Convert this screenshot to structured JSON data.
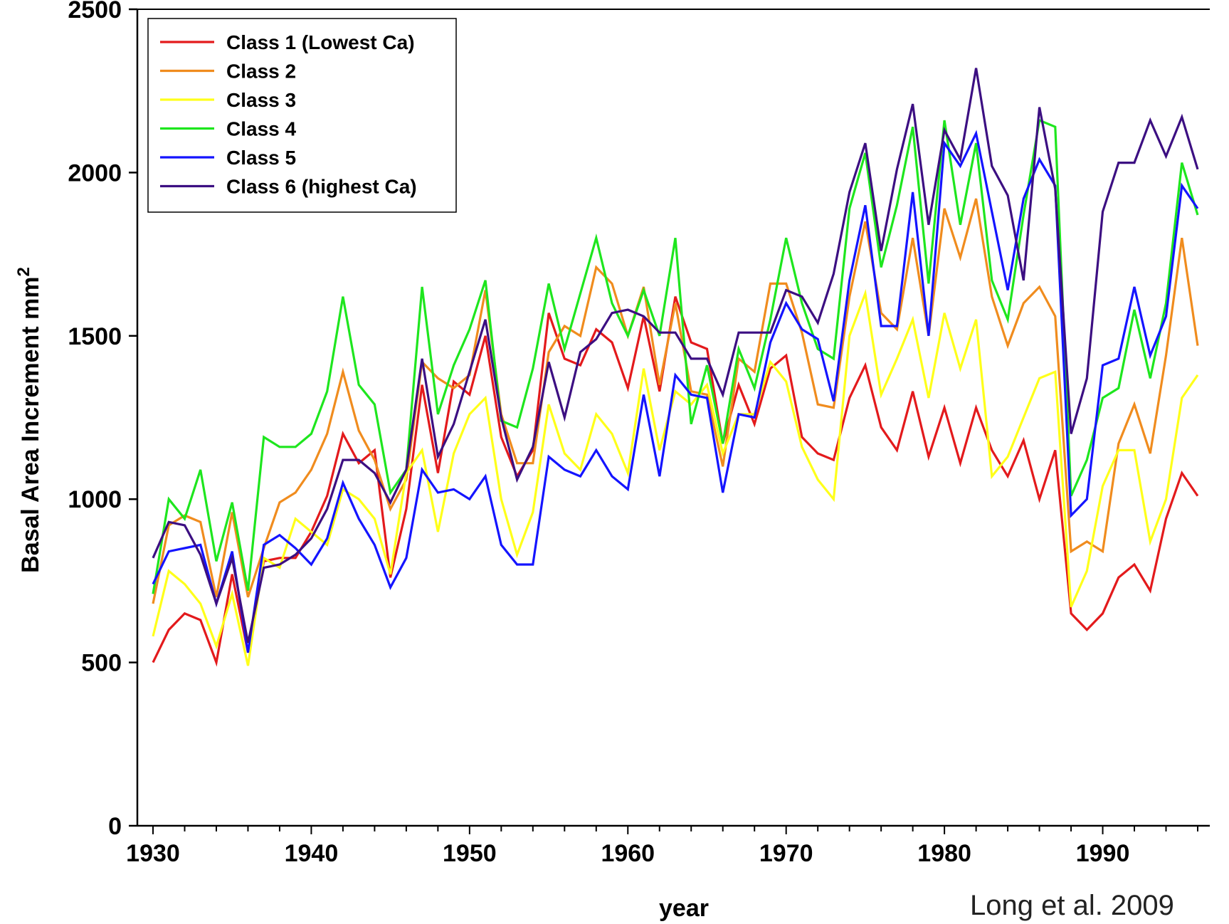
{
  "chart_data": {
    "type": "line",
    "title": "",
    "xlabel": "year",
    "ylabel": "Basal Area Increment mm",
    "ylabel_superscript": "2",
    "xlim": [
      1929,
      1997
    ],
    "ylim": [
      0,
      2500
    ],
    "xticks": [
      1930,
      1940,
      1950,
      1960,
      1970,
      1980,
      1990
    ],
    "yticks": [
      0,
      500,
      1000,
      1500,
      2000,
      2500
    ],
    "legend_position": "top-left",
    "grid": false,
    "x": [
      1930,
      1931,
      1932,
      1933,
      1934,
      1935,
      1936,
      1937,
      1938,
      1939,
      1940,
      1941,
      1942,
      1943,
      1944,
      1945,
      1946,
      1947,
      1948,
      1949,
      1950,
      1951,
      1952,
      1953,
      1954,
      1955,
      1956,
      1957,
      1958,
      1959,
      1960,
      1961,
      1962,
      1963,
      1964,
      1965,
      1966,
      1967,
      1968,
      1969,
      1970,
      1971,
      1972,
      1973,
      1974,
      1975,
      1976,
      1977,
      1978,
      1979,
      1980,
      1981,
      1982,
      1983,
      1984,
      1985,
      1986,
      1987,
      1988,
      1989,
      1990,
      1991,
      1992,
      1993,
      1994,
      1995,
      1996
    ],
    "series": [
      {
        "name": "Class 1 (Lowest Ca)",
        "color": "#e31a1c",
        "values": [
          500,
          600,
          650,
          630,
          500,
          770,
          530,
          810,
          820,
          820,
          900,
          1010,
          1200,
          1110,
          1150,
          760,
          970,
          1350,
          1080,
          1360,
          1320,
          1500,
          1190,
          1070,
          1150,
          1570,
          1430,
          1410,
          1520,
          1480,
          1340,
          1560,
          1330,
          1620,
          1480,
          1460,
          1170,
          1350,
          1230,
          1400,
          1440,
          1190,
          1140,
          1120,
          1310,
          1410,
          1220,
          1150,
          1330,
          1130,
          1280,
          1110,
          1280,
          1150,
          1070,
          1180,
          1000,
          1150,
          650,
          600,
          650,
          760,
          800,
          720,
          940,
          1080,
          1010
        ]
      },
      {
        "name": "Class 2",
        "color": "#f08c1e",
        "values": [
          680,
          920,
          950,
          930,
          700,
          960,
          700,
          850,
          990,
          1020,
          1090,
          1200,
          1390,
          1210,
          1120,
          970,
          1060,
          1420,
          1370,
          1340,
          1380,
          1640,
          1260,
          1110,
          1110,
          1450,
          1530,
          1500,
          1710,
          1660,
          1500,
          1650,
          1350,
          1600,
          1330,
          1320,
          1100,
          1430,
          1390,
          1660,
          1660,
          1510,
          1290,
          1280,
          1620,
          1850,
          1570,
          1520,
          1800,
          1500,
          1890,
          1740,
          1920,
          1620,
          1470,
          1600,
          1650,
          1560,
          840,
          870,
          840,
          1170,
          1290,
          1140,
          1440,
          1800,
          1470
        ]
      },
      {
        "name": "Class 3",
        "color": "#ffff1a",
        "values": [
          580,
          780,
          740,
          680,
          550,
          710,
          490,
          820,
          790,
          940,
          900,
          860,
          1030,
          1000,
          940,
          770,
          1080,
          1150,
          900,
          1140,
          1260,
          1310,
          1000,
          830,
          960,
          1290,
          1140,
          1090,
          1260,
          1200,
          1080,
          1400,
          1150,
          1330,
          1290,
          1350,
          1140,
          1260,
          1260,
          1420,
          1360,
          1160,
          1060,
          1000,
          1500,
          1630,
          1320,
          1430,
          1550,
          1310,
          1570,
          1400,
          1550,
          1070,
          1130,
          1250,
          1370,
          1390,
          670,
          780,
          1040,
          1150,
          1150,
          870,
          1000,
          1310,
          1380
        ]
      },
      {
        "name": "Class 4",
        "color": "#1ee61e",
        "values": [
          710,
          1000,
          940,
          1090,
          810,
          990,
          720,
          1190,
          1160,
          1160,
          1200,
          1330,
          1620,
          1350,
          1290,
          1020,
          1090,
          1650,
          1260,
          1410,
          1520,
          1670,
          1240,
          1220,
          1400,
          1660,
          1460,
          1630,
          1800,
          1600,
          1500,
          1640,
          1500,
          1800,
          1230,
          1410,
          1170,
          1460,
          1340,
          1550,
          1800,
          1600,
          1460,
          1430,
          1890,
          2060,
          1710,
          1900,
          2140,
          1660,
          2160,
          1840,
          2090,
          1670,
          1550,
          1870,
          2160,
          2140,
          1010,
          1120,
          1310,
          1340,
          1580,
          1370,
          1600,
          2030,
          1870
        ]
      },
      {
        "name": "Class 5",
        "color": "#1414ff",
        "values": [
          740,
          840,
          850,
          860,
          680,
          840,
          530,
          860,
          890,
          850,
          800,
          880,
          1050,
          940,
          860,
          730,
          820,
          1090,
          1020,
          1030,
          1000,
          1070,
          860,
          800,
          800,
          1130,
          1090,
          1070,
          1150,
          1070,
          1030,
          1320,
          1070,
          1380,
          1320,
          1310,
          1020,
          1260,
          1250,
          1480,
          1600,
          1520,
          1490,
          1300,
          1670,
          1900,
          1530,
          1530,
          1940,
          1500,
          2090,
          2020,
          2120,
          1880,
          1640,
          1920,
          2040,
          1960,
          950,
          1000,
          1410,
          1430,
          1650,
          1440,
          1560,
          1960,
          1890
        ]
      },
      {
        "name": "Class 6 (highest Ca)",
        "color": "#3c0f82",
        "values": [
          820,
          930,
          920,
          830,
          680,
          820,
          560,
          790,
          800,
          830,
          880,
          970,
          1120,
          1120,
          1080,
          990,
          1090,
          1430,
          1130,
          1230,
          1390,
          1550,
          1250,
          1060,
          1160,
          1420,
          1250,
          1450,
          1490,
          1570,
          1580,
          1560,
          1510,
          1510,
          1430,
          1430,
          1320,
          1510,
          1510,
          1510,
          1640,
          1620,
          1540,
          1690,
          1940,
          2090,
          1760,
          2010,
          2210,
          1840,
          2130,
          2040,
          2320,
          2020,
          1930,
          1670,
          2200,
          1950,
          1200,
          1370,
          1880,
          2030,
          2030,
          2160,
          2050,
          2170,
          2010
        ]
      }
    ]
  },
  "citation": "Long et al. 2009"
}
